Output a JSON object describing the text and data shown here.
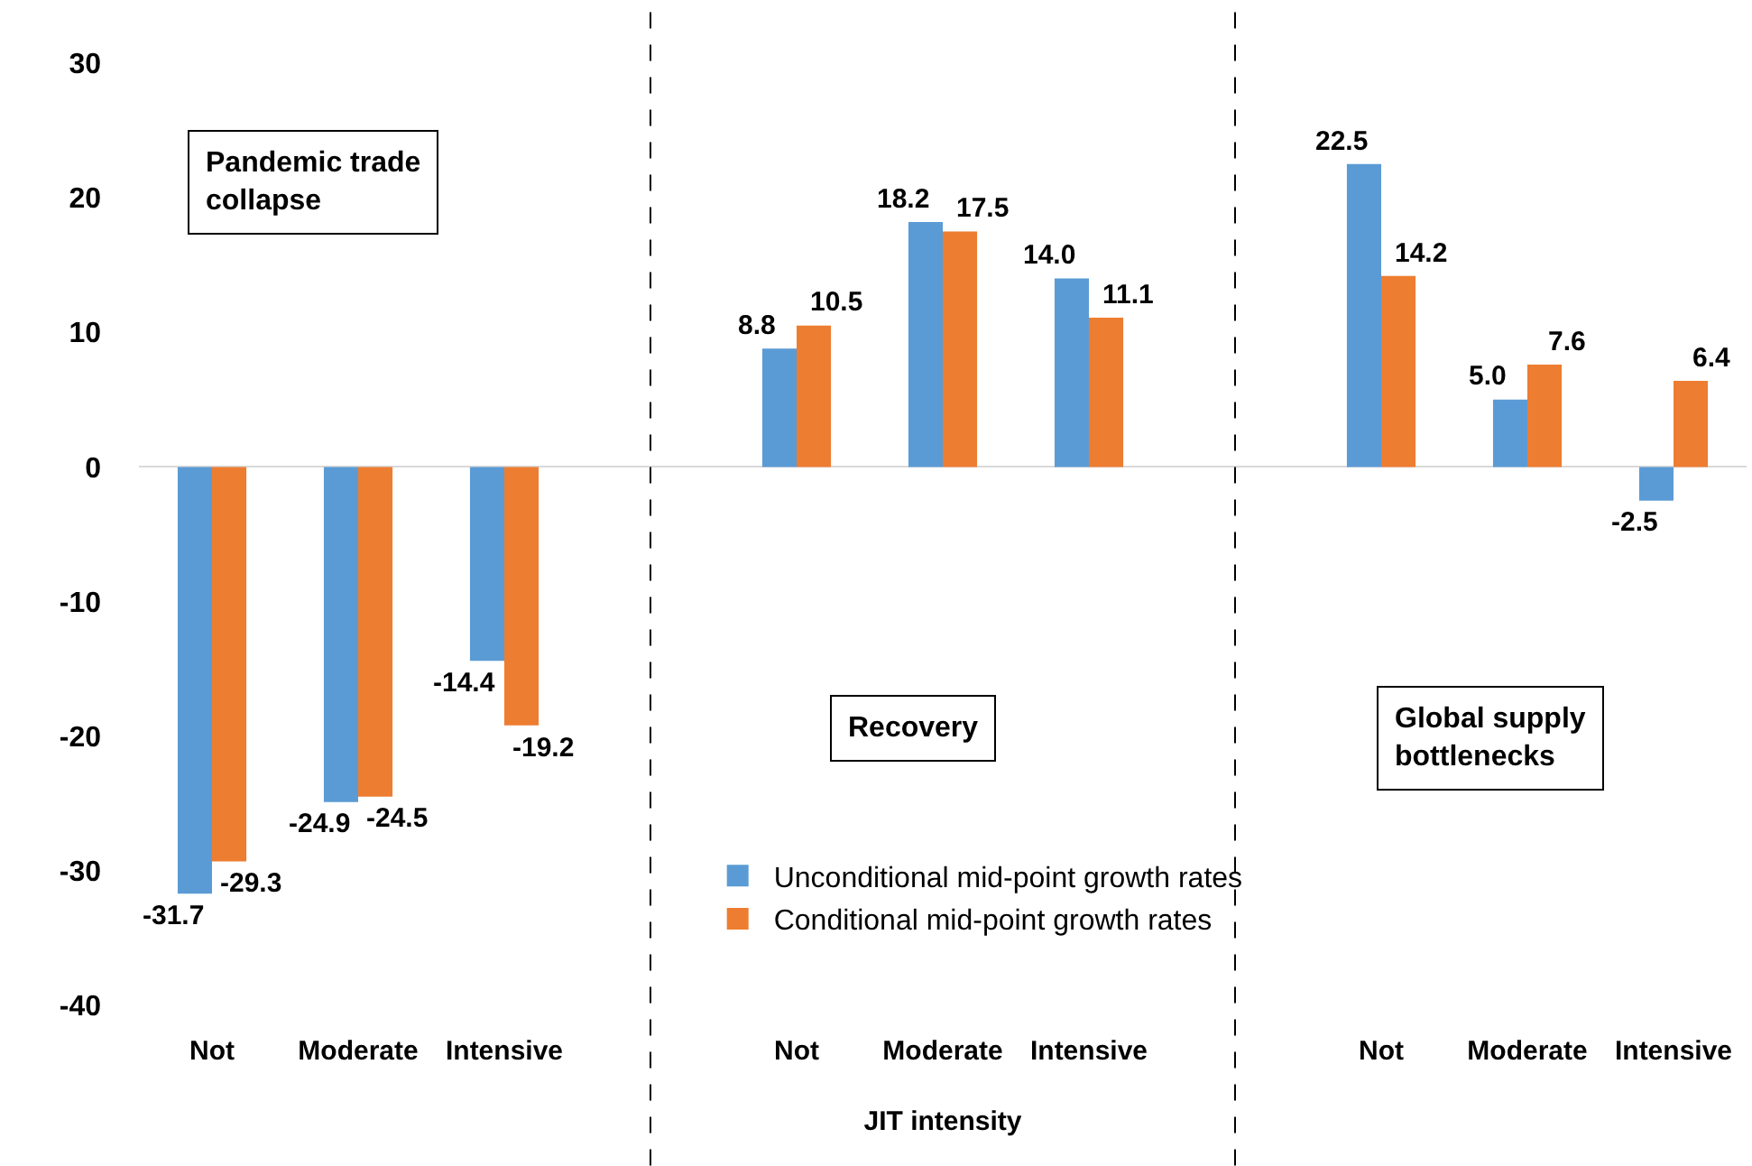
{
  "chart_data": {
    "type": "bar",
    "categories": [
      "Not",
      "Moderate",
      "Intensive",
      null,
      "Not",
      "Moderate",
      "Intensive",
      null,
      "Not",
      "Moderate",
      "Intensive"
    ],
    "series": [
      {
        "name": "Unconditional mid-point growth rates",
        "color": "#5b9bd5",
        "values": [
          -31.7,
          -24.9,
          -14.4,
          null,
          8.8,
          18.2,
          14.0,
          null,
          22.5,
          5.0,
          -2.5
        ],
        "value_labels": [
          "-31.7",
          "-24.9",
          "-14.4",
          null,
          "8.8",
          "18.2",
          "14.0",
          null,
          "22.5",
          "5.0",
          "-2.5"
        ]
      },
      {
        "name": "Conditional mid-point growth rates",
        "color": "#ed7d31",
        "values": [
          -29.3,
          -24.5,
          -19.2,
          null,
          10.5,
          17.5,
          11.1,
          null,
          14.2,
          7.6,
          6.4
        ],
        "value_labels": [
          "-29.3",
          "-24.5",
          "-19.2",
          null,
          "10.5",
          "17.5",
          "11.1",
          null,
          "14.2",
          "7.6",
          "6.4"
        ]
      }
    ],
    "xlabel": "JIT intensity",
    "ylim": [
      -40,
      30
    ],
    "yticks": [
      -40,
      -30,
      -20,
      -10,
      0,
      10,
      20,
      30
    ],
    "legend": "bottom",
    "annotations": [
      "Pandemic trade collapse",
      "Recovery",
      "Global supply bottlenecks"
    ]
  }
}
